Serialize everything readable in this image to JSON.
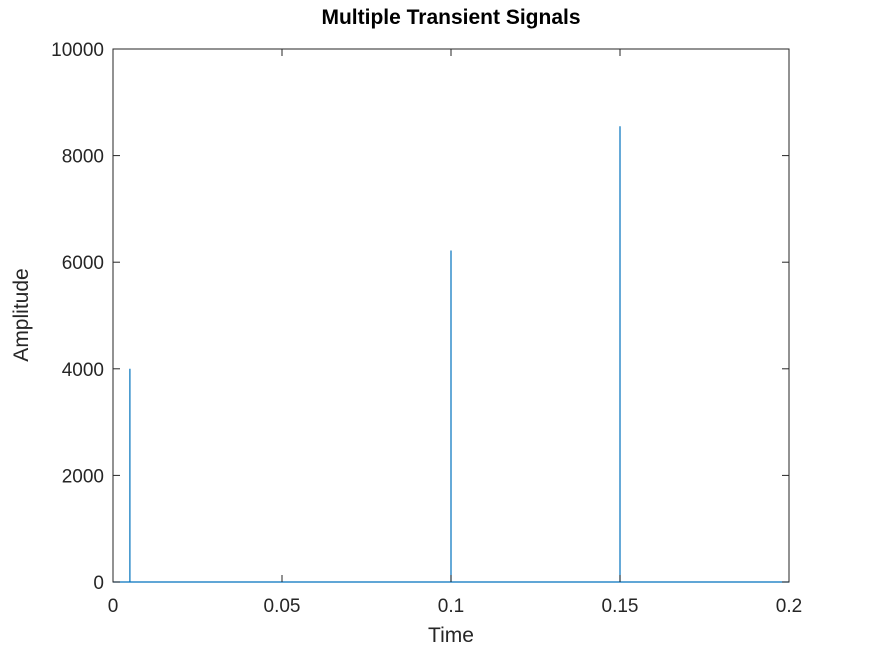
{
  "chart_data": {
    "type": "line",
    "title": "Multiple Transient Signals",
    "xlabel": "Time",
    "ylabel": "Amplitude",
    "xlim": [
      0,
      0.2
    ],
    "ylim": [
      0,
      10000
    ],
    "x_ticks": [
      0,
      0.05,
      0.1,
      0.15,
      0.2
    ],
    "x_tick_labels": [
      "0",
      "0.05",
      "0.1",
      "0.15",
      "0.2"
    ],
    "y_ticks": [
      0,
      2000,
      4000,
      6000,
      8000,
      10000
    ],
    "y_tick_labels": [
      "0",
      "2000",
      "4000",
      "6000",
      "8000",
      "10000"
    ],
    "grid": false,
    "box": true,
    "line_color": "#0072BD",
    "axis_color": "#262626",
    "series": [
      {
        "x": [
          0,
          0.005,
          0.005,
          0.005,
          0.1,
          0.1,
          0.1,
          0.15,
          0.15,
          0.15,
          0.2
        ],
        "y": [
          0,
          0,
          4000,
          0,
          0,
          6220,
          0,
          0,
          8550,
          0,
          0
        ]
      }
    ]
  }
}
